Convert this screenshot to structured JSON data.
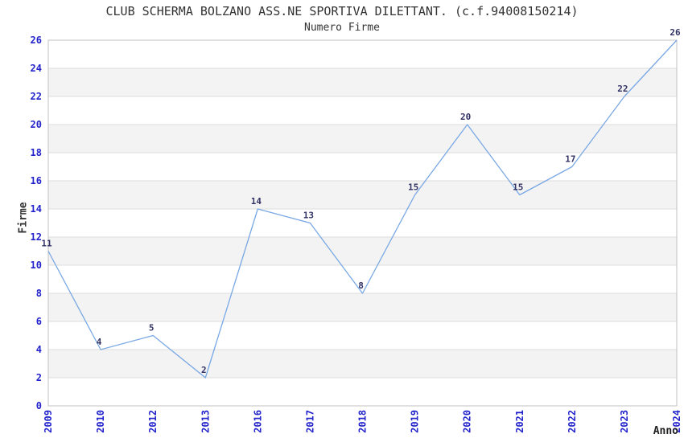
{
  "chart_data": {
    "type": "line",
    "title": "CLUB SCHERMA BOLZANO ASS.NE SPORTIVA DILETTANT. (c.f.94008150214)",
    "subtitle": "Numero Firme",
    "xlabel": "Anno",
    "ylabel": "Firme",
    "categories": [
      "2009",
      "2010",
      "2012",
      "2013",
      "2016",
      "2017",
      "2018",
      "2019",
      "2020",
      "2021",
      "2022",
      "2023",
      "2024"
    ],
    "values": [
      11,
      4,
      5,
      2,
      14,
      13,
      8,
      15,
      20,
      15,
      17,
      22,
      26
    ],
    "ylim": [
      0,
      26
    ],
    "ytick_step": 2,
    "grid": "horizontal",
    "background_bands": "alternating",
    "legend": "none",
    "data_labels_shown": true,
    "colors": {
      "line": "#79a8e4",
      "tick_label": "#2323cc",
      "data_label": "#333366",
      "band_fill": "#f3f3f3",
      "gridline": "#dddddd",
      "plot_border": "#c0c0c0",
      "title_text": "#333333"
    }
  }
}
